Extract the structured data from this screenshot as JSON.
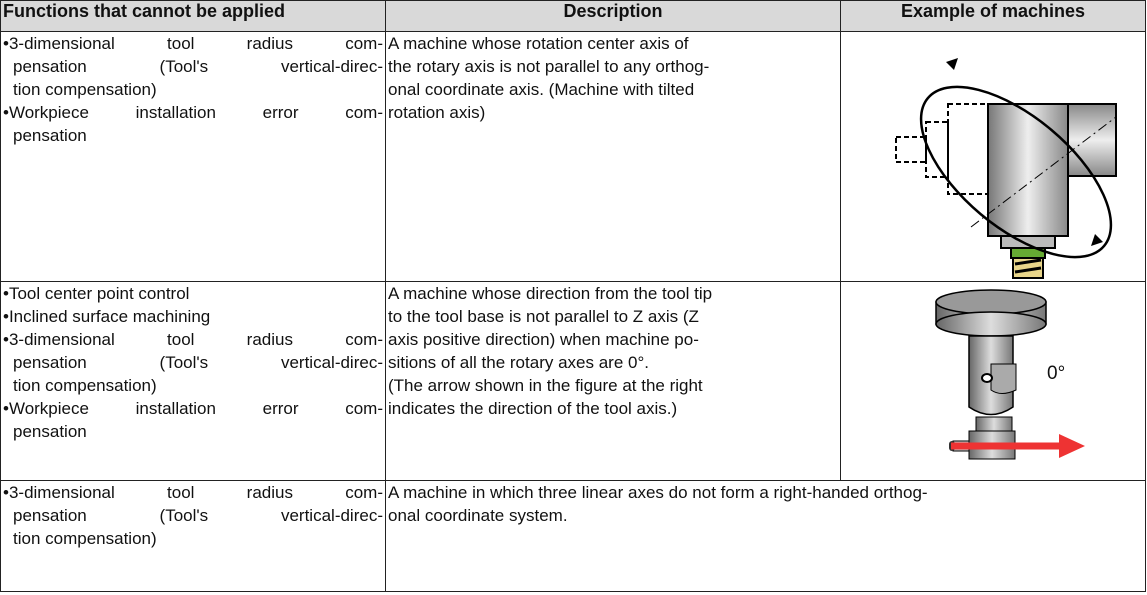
{
  "table": {
    "header": [
      "Functions that cannot be applied",
      "Description",
      "Example of machines"
    ],
    "rows": [
      {
        "functions": [
          [
            "•3-dimensional tool radius com-",
            "pensation (Tool's vertical-direc-",
            "tion compensation)"
          ],
          [
            "•Workpiece installation error com-",
            "pensation"
          ]
        ],
        "description": [
          "A machine whose rotation center axis of",
          "the rotary axis is not parallel to any orthog-",
          "onal coordinate axis. (Machine with tilted",
          "rotation axis)"
        ]
      },
      {
        "functions": [
          [
            "•Tool center point control"
          ],
          [
            "•Inclined surface machining"
          ],
          [
            "•3-dimensional tool radius com-",
            "pensation (Tool's vertical-direc-",
            "tion compensation)"
          ],
          [
            "•Workpiece installation error com-",
            "pensation"
          ]
        ],
        "description": [
          "A machine whose direction from the tool tip",
          "to the tool base is not parallel to Z axis (Z",
          "axis positive direction) when machine po-",
          "sitions of all the rotary axes are 0°.",
          "(The arrow shown in the figure at the right",
          "indicates the direction of the tool axis.)"
        ],
        "figure_label": "0°"
      },
      {
        "functions": [
          [
            "•3-dimensional tool radius com-",
            "pensation (Tool's vertical-direc-",
            "tion compensation)"
          ]
        ],
        "description": [
          "A machine in which three linear axes do not form a right-handed orthog-",
          "onal coordinate system."
        ]
      }
    ]
  }
}
